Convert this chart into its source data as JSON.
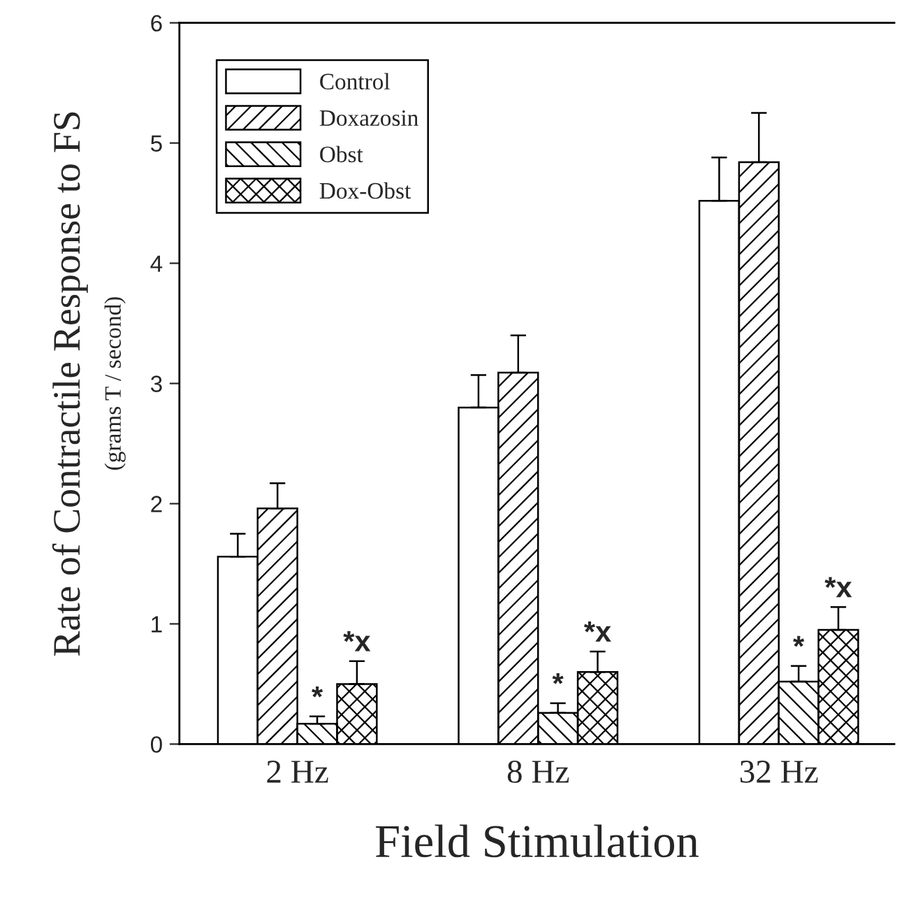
{
  "chart_data": {
    "type": "bar",
    "xlabel": "Field Stimulation",
    "ylabel": "Rate of Contractile Response to FS\n(grams T / second)",
    "categories": [
      "2 Hz",
      "8 Hz",
      "32 Hz"
    ],
    "series": [
      {
        "name": "Control",
        "color": "#ffffff",
        "values": [
          1.56,
          2.8,
          4.52
        ],
        "errors": [
          [
            1.56,
            1.75
          ],
          [
            2.8,
            3.07
          ],
          [
            4.52,
            4.88
          ]
        ]
      },
      {
        "name": "Doxazosin",
        "color": "#000000",
        "values": [
          1.96,
          3.09,
          4.84
        ],
        "errors": [
          [
            1.96,
            2.17
          ],
          [
            3.09,
            3.4
          ],
          [
            4.84,
            5.25
          ]
        ]
      },
      {
        "name": "Obst",
        "color": "#000000",
        "values": [
          0.17,
          0.26,
          0.52
        ],
        "errors": [
          [
            0.17,
            0.23
          ],
          [
            0.26,
            0.34
          ],
          [
            0.52,
            0.65
          ]
        ]
      },
      {
        "name": "Dox-Obst",
        "color": "#000000",
        "values": [
          0.5,
          0.6,
          0.95
        ],
        "errors": [
          [
            0.5,
            0.69
          ],
          [
            0.6,
            0.77
          ],
          [
            0.95,
            1.14
          ]
        ]
      }
    ],
    "annotations": [
      {
        "text": "*",
        "x": "2 Hz",
        "y": 0.23
      },
      {
        "text": "*x",
        "x": "2 Hz",
        "y": 0.69
      },
      {
        "text": "*",
        "x": "8 Hz",
        "y": 0.34
      },
      {
        "text": "*x",
        "x": "8 Hz",
        "y": 0.77
      },
      {
        "text": "*",
        "x": "32 Hz",
        "y": 0.65
      },
      {
        "text": "*x",
        "x": "32 Hz",
        "y": 1.14
      }
    ],
    "ylim": [
      0,
      6
    ],
    "yticks": [
      0,
      1,
      2,
      3,
      4,
      5,
      6
    ],
    "legend": "top left",
    "grid": false
  }
}
